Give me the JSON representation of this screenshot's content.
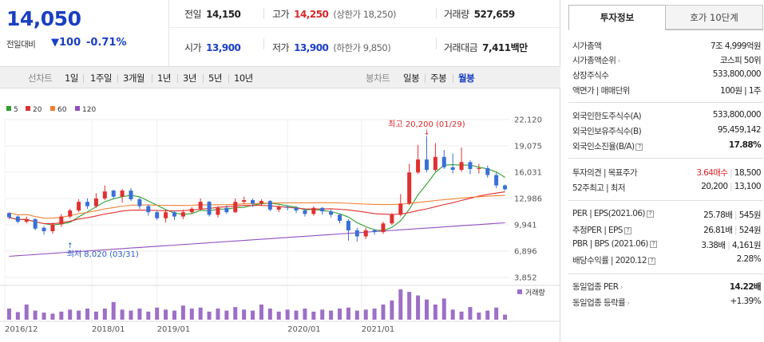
{
  "summary": {
    "current_price": "14,050",
    "change_label": "전일대비",
    "change_value": "100",
    "change_pct": "-0.71%",
    "prev_close_label": "전일",
    "prev_close": "14,150",
    "high_label": "고가",
    "high": "14,250",
    "upper_limit": "(상한가 18,250)",
    "volume_label": "거래량",
    "volume": "527,659",
    "open_label": "시가",
    "open": "13,900",
    "low_label": "저가",
    "low": "13,900",
    "lower_limit": "(하한가 9,850)",
    "amount_label": "거래대금",
    "amount": "7,411",
    "amount_unit": "백만"
  },
  "toolbar": {
    "line_chart_label": "선차트",
    "periods": [
      "1일",
      "1주일",
      "3개월",
      "1년",
      "3년",
      "5년",
      "10년"
    ],
    "candle_label": "봉차트",
    "candle_periods": [
      "일봉",
      "주봉",
      "월봉"
    ],
    "selected": "월봉"
  },
  "chart_data": {
    "type": "candlestick",
    "legend": [
      {
        "name": "5",
        "color": "#2ca02c"
      },
      {
        "name": "20",
        "color": "#e03030"
      },
      {
        "name": "60",
        "color": "#f08030"
      },
      {
        "name": "120",
        "color": "#9050c0"
      }
    ],
    "y_ticks": [
      "22,120",
      "19,075",
      "16,031",
      "12,986",
      "9,941",
      "6,896",
      "3,852"
    ],
    "x_ticks": [
      "2016/12",
      "2018/01",
      "2019/01",
      "2020/01",
      "2021/01"
    ],
    "max_annotation": "최고 20,200 (01/29)",
    "min_annotation": "최저 8,020 (03/31)",
    "volume_label": "거래량",
    "up_color": "#e03030",
    "down_color": "#3a6fd8",
    "candles": [
      [
        11300,
        10800,
        11400,
        10600
      ],
      [
        10900,
        10300,
        11000,
        10100
      ],
      [
        10300,
        10600,
        10900,
        10100
      ],
      [
        10600,
        9500,
        10700,
        9300
      ],
      [
        9600,
        9200,
        9800,
        8800
      ],
      [
        9200,
        10000,
        10200,
        8900
      ],
      [
        10000,
        10900,
        11200,
        9700
      ],
      [
        10900,
        11600,
        11800,
        10700
      ],
      [
        11600,
        12600,
        12900,
        11400
      ],
      [
        12600,
        12100,
        13000,
        11800
      ],
      [
        12100,
        13000,
        13600,
        11900
      ],
      [
        13000,
        13800,
        14500,
        12800
      ],
      [
        13900,
        13200,
        14000,
        12900
      ],
      [
        13200,
        13900,
        14100,
        12500
      ],
      [
        13900,
        12900,
        14200,
        12700
      ],
      [
        12900,
        12100,
        13100,
        11800
      ],
      [
        12100,
        11400,
        12300,
        11000
      ],
      [
        11400,
        10700,
        11600,
        10500
      ],
      [
        10700,
        11400,
        11700,
        10200
      ],
      [
        11400,
        10900,
        11600,
        10500
      ],
      [
        10900,
        11400,
        11700,
        10600
      ],
      [
        11400,
        11800,
        12000,
        11200
      ],
      [
        11800,
        12600,
        13000,
        11600
      ],
      [
        12600,
        11100,
        12700,
        10900
      ],
      [
        11100,
        11900,
        12100,
        10800
      ],
      [
        11900,
        11400,
        12200,
        11200
      ],
      [
        11400,
        12600,
        13000,
        11300
      ],
      [
        12600,
        12800,
        13200,
        12400
      ],
      [
        12800,
        12400,
        13000,
        12000
      ],
      [
        12400,
        12700,
        12900,
        12100
      ],
      [
        12700,
        11700,
        12800,
        11500
      ],
      [
        11700,
        12000,
        12200,
        11400
      ],
      [
        12000,
        11900,
        12200,
        11600
      ],
      [
        11900,
        11600,
        12100,
        11300
      ],
      [
        11600,
        11200,
        11800,
        10900
      ],
      [
        11200,
        11900,
        12100,
        11000
      ],
      [
        11900,
        11500,
        12000,
        11100
      ],
      [
        11500,
        11100,
        11700,
        10800
      ],
      [
        11100,
        10400,
        11200,
        10100
      ],
      [
        10400,
        9300,
        10600,
        8100
      ],
      [
        9300,
        8600,
        9600,
        8020
      ],
      [
        8600,
        9300,
        9600,
        8300
      ],
      [
        9300,
        9100,
        9500,
        8800
      ],
      [
        9100,
        10100,
        10300,
        8900
      ],
      [
        10100,
        11100,
        11300,
        9900
      ],
      [
        11100,
        12400,
        13500,
        10900
      ],
      [
        12400,
        16000,
        17000,
        12200
      ],
      [
        16000,
        17500,
        19200,
        15800
      ],
      [
        17500,
        16300,
        20200,
        16000
      ],
      [
        16300,
        17800,
        19400,
        16100
      ],
      [
        17800,
        16600,
        18600,
        16400
      ],
      [
        16600,
        16300,
        18200,
        15900
      ],
      [
        16300,
        17200,
        18900,
        16100
      ],
      [
        17200,
        16400,
        17400,
        15800
      ],
      [
        16400,
        16500,
        17000,
        15900
      ],
      [
        16500,
        15700,
        16800,
        15400
      ],
      [
        15700,
        14500,
        16000,
        14200
      ],
      [
        14500,
        14050,
        14600,
        13900
      ]
    ],
    "volumes": [
      22,
      15,
      30,
      18,
      14,
      12,
      16,
      20,
      18,
      22,
      16,
      22,
      35,
      20,
      18,
      22,
      16,
      24,
      20,
      18,
      28,
      22,
      24,
      16,
      22,
      18,
      25,
      20,
      18,
      30,
      22,
      16,
      20,
      18,
      22,
      16,
      20,
      18,
      22,
      24,
      18,
      20,
      22,
      30,
      38,
      60,
      55,
      48,
      40,
      30,
      42,
      20,
      16,
      25,
      14,
      18,
      24,
      10
    ]
  },
  "invest": {
    "tab_info": "투자정보",
    "tab_hoga": "호가 10단계",
    "rows1": [
      {
        "k": "시가총액",
        "v": "7조 4,999억원"
      },
      {
        "k": "시가총액순위",
        "v": "코스피 50위"
      },
      {
        "k": "상장주식수",
        "v": "533,800,000"
      },
      {
        "k": "액면가 | 매매단위",
        "v": "100원 | 1주"
      }
    ],
    "rows2": [
      {
        "k": "외국인한도주식수(A)",
        "v": "533,800,000"
      },
      {
        "k": "외국인보유주식수(B)",
        "v": "95,459,142"
      },
      {
        "k": "외국인소진율(B/A)",
        "v": "17.88%"
      }
    ],
    "opinion_label": "투자의견 | 목표주가",
    "opinion_value": "3.64매수",
    "target_price": "18,500",
    "week52_label": "52주최고 | 최저",
    "week52_high": "20,200",
    "week52_low": "13,100",
    "rows3": [
      {
        "k": "PER | EPS(2021.06)",
        "v1": "25.78배",
        "v2": "545원"
      },
      {
        "k": "추정PER | EPS",
        "v1": "26.81배",
        "v2": "524원"
      },
      {
        "k": "PBR | BPS (2021.06)",
        "v1": "3.38배",
        "v2": "4,161원"
      },
      {
        "k": "배당수익률 | 2020.12",
        "v1": "",
        "v2": "2.28%"
      }
    ],
    "industry_per_label": "동일업종 PER",
    "industry_per": "14.22배",
    "industry_chg_label": "동일업종 등락률",
    "industry_chg": "+1.39%"
  }
}
